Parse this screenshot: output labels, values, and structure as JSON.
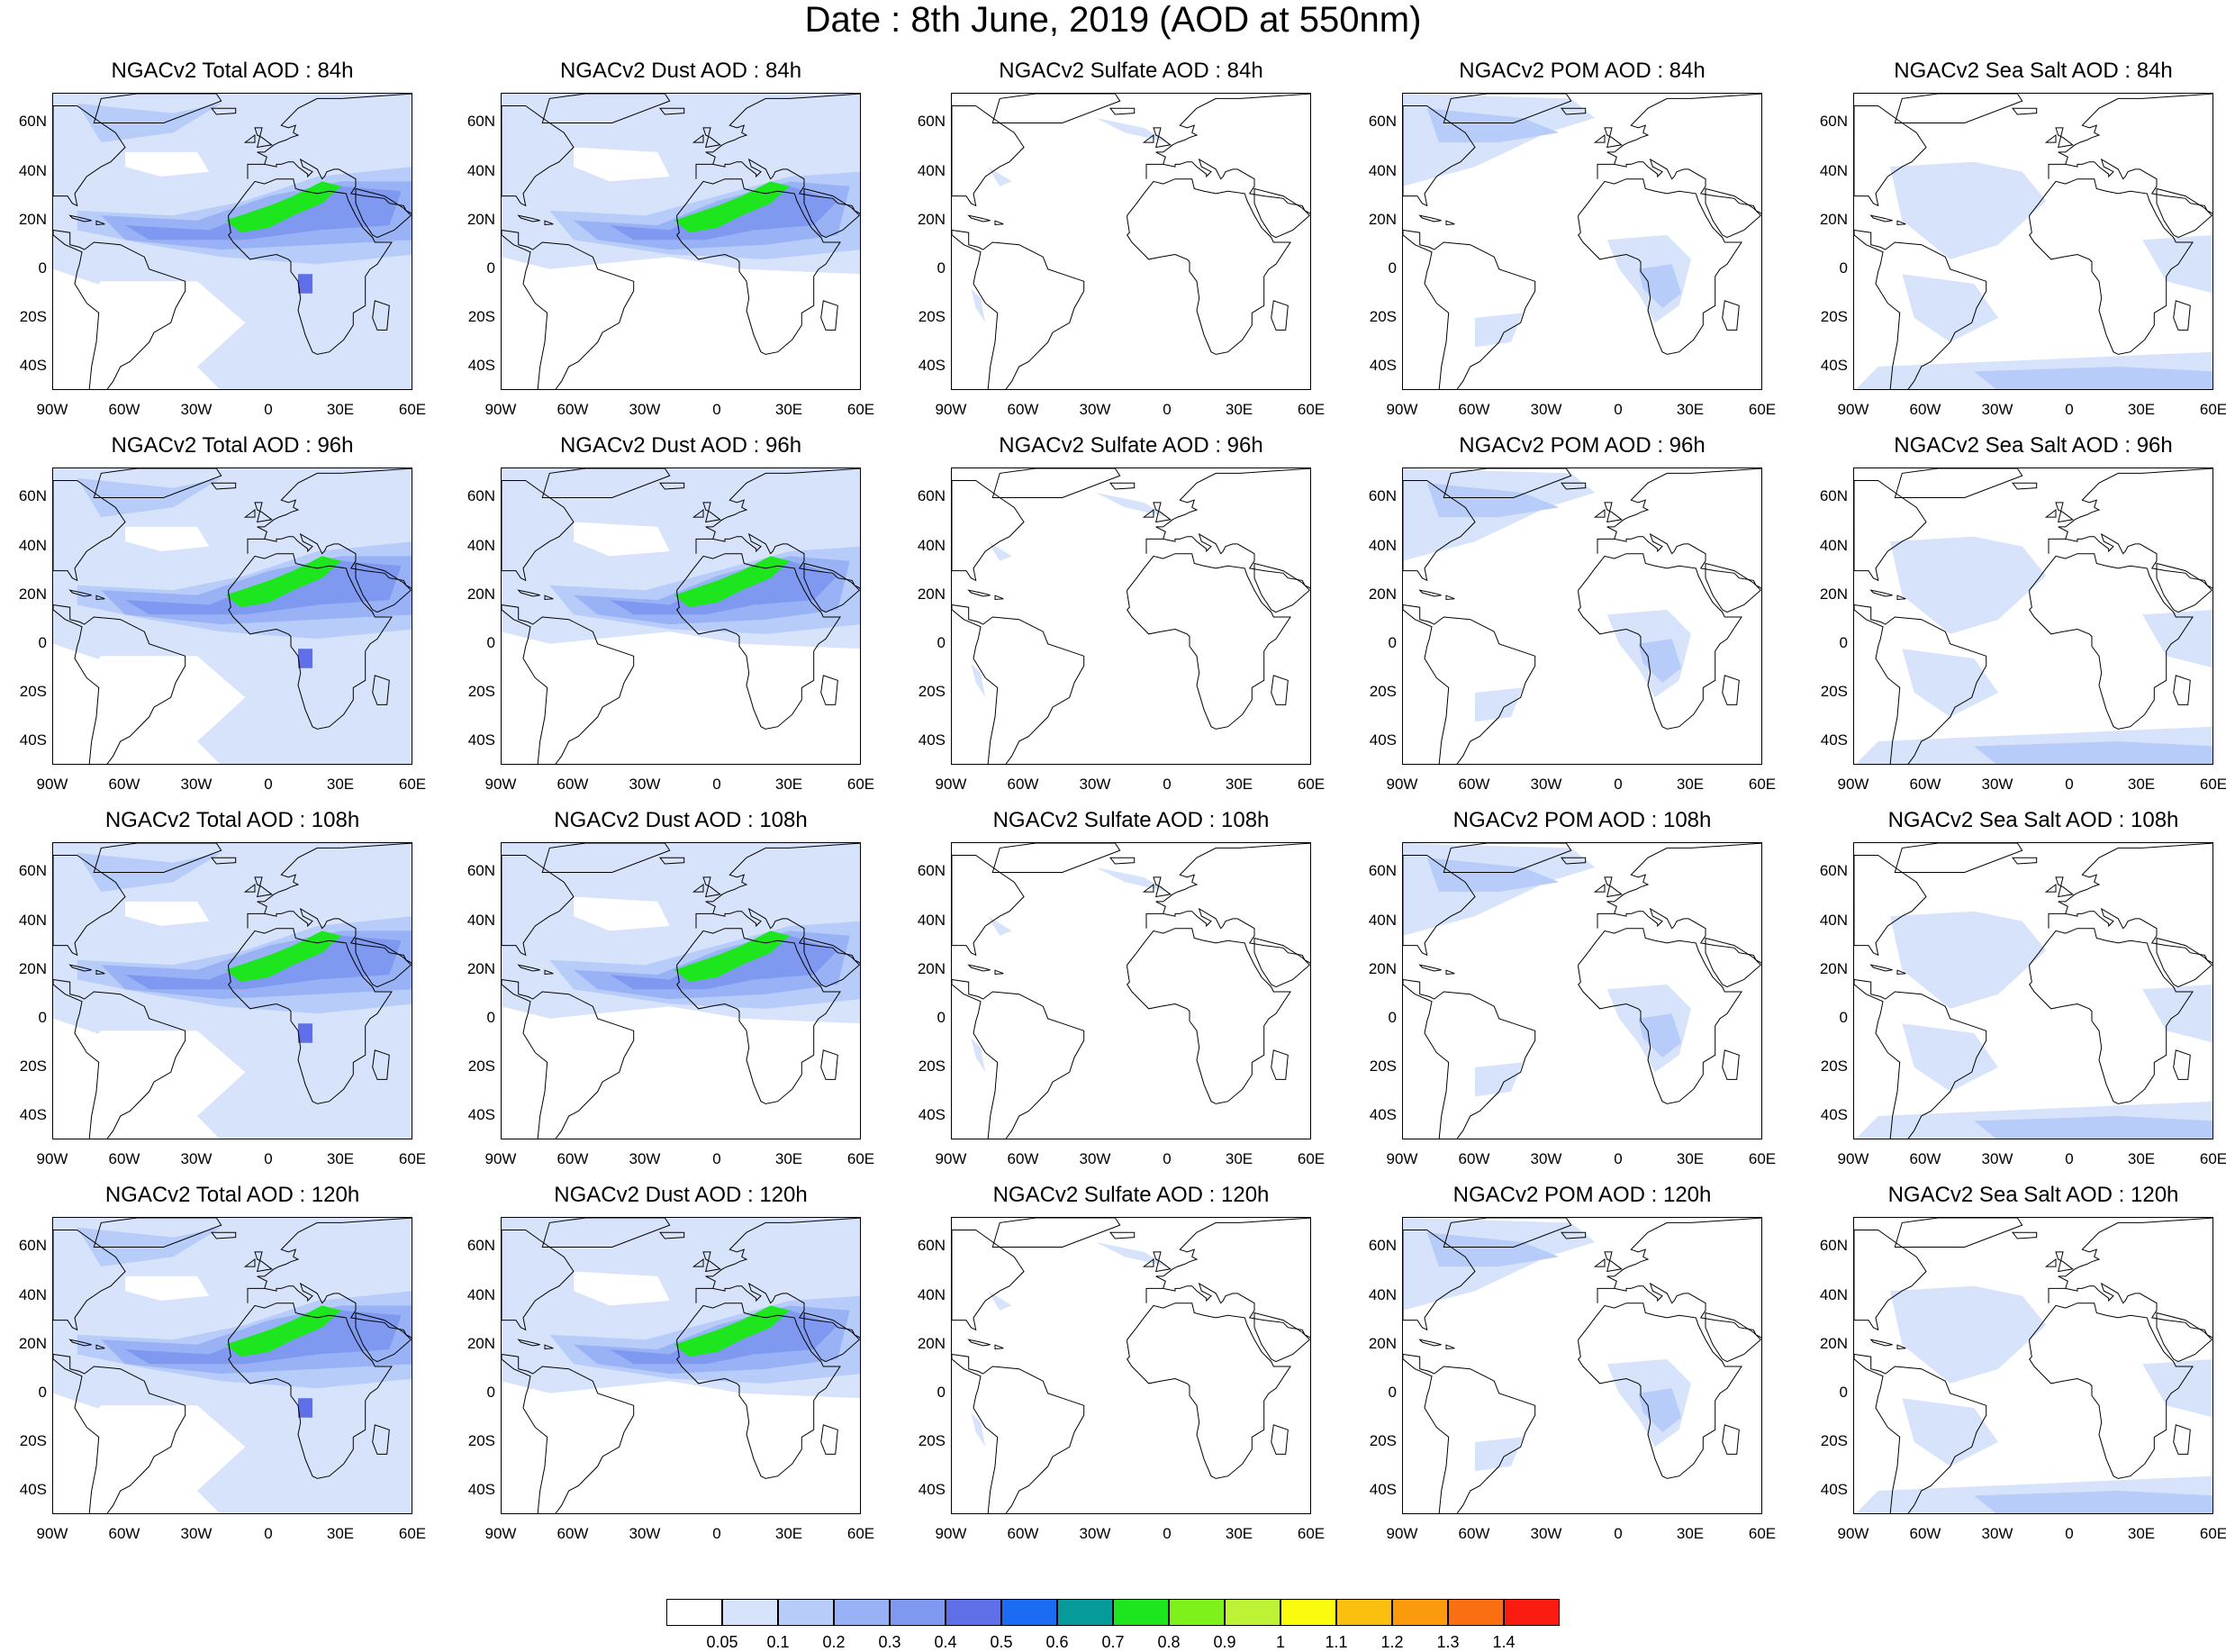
{
  "title": "Date : 8th June, 2019 (AOD at 550nm)",
  "rows": [
    {
      "forecast": "84h",
      "panels": [
        "NGACv2 Total AOD : 84h",
        "NGACv2 Dust AOD : 84h",
        "NGACv2 Sulfate AOD : 84h",
        "NGACv2 POM AOD : 84h",
        "NGACv2 Sea Salt AOD : 84h"
      ]
    },
    {
      "forecast": "96h",
      "panels": [
        "NGACv2 Total AOD : 96h",
        "NGACv2 Dust AOD : 96h",
        "NGACv2 Sulfate AOD : 96h",
        "NGACv2 POM AOD : 96h",
        "NGACv2 Sea Salt AOD : 96h"
      ]
    },
    {
      "forecast": "108h",
      "panels": [
        "NGACv2 Total AOD : 108h",
        "NGACv2 Dust AOD : 108h",
        "NGACv2 Sulfate AOD : 108h",
        "NGACv2 POM AOD : 108h",
        "NGACv2 Sea Salt AOD : 108h"
      ]
    },
    {
      "forecast": "120h",
      "panels": [
        "NGACv2 Total AOD : 120h",
        "NGACv2 Dust AOD : 120h",
        "NGACv2 Sulfate AOD : 120h",
        "NGACv2 POM AOD : 120h",
        "NGACv2 Sea Salt  AOD : 120h"
      ]
    }
  ],
  "species": [
    "total",
    "dust",
    "sulfate",
    "pom",
    "seasalt"
  ],
  "lat_labels": [
    "60N",
    "40N",
    "20N",
    "0",
    "20S",
    "40S"
  ],
  "lon_labels": [
    "90W",
    "60W",
    "30W",
    "0",
    "30E",
    "60E"
  ],
  "extent": {
    "lon": [
      -90,
      60
    ],
    "lat": [
      -50,
      72
    ]
  },
  "colorbar": {
    "labels": [
      "0.05",
      "0.1",
      "0.2",
      "0.3",
      "0.4",
      "0.5",
      "0.6",
      "0.7",
      "0.8",
      "0.9",
      "1",
      "1.1",
      "1.2",
      "1.3",
      "1.4"
    ],
    "colors": [
      "#ffffff",
      "#d7e3fb",
      "#b7ccf8",
      "#98b2f5",
      "#7f98f0",
      "#5f6fe8",
      "#1b6cf2",
      "#079a9a",
      "#1ee61e",
      "#7ef01a",
      "#bef234",
      "#fbfb10",
      "#fbc00f",
      "#fa9a0c",
      "#fa6f12",
      "#fa1c10"
    ]
  }
}
